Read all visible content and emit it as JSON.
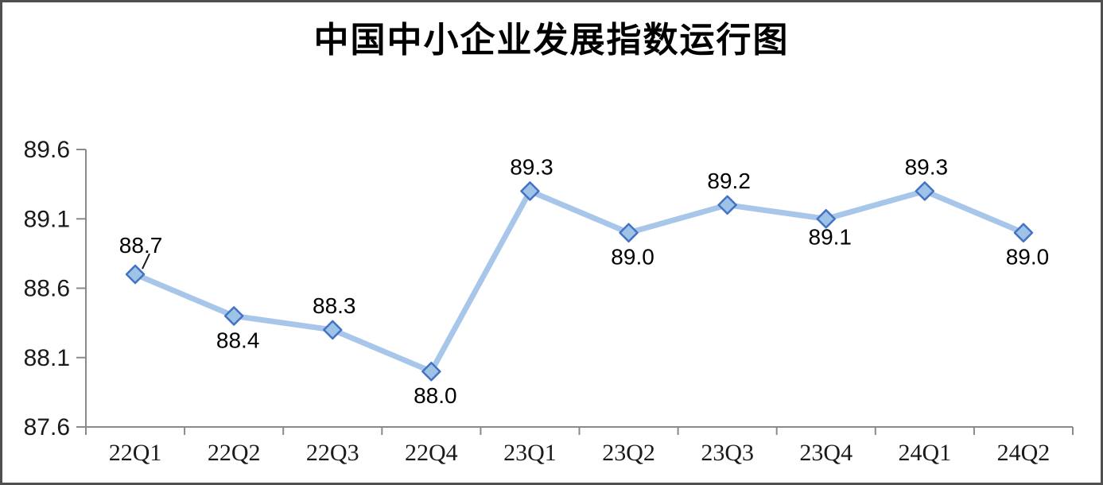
{
  "figure": {
    "background_color": "#ffffff",
    "frame_border_color": "#4f4f4f"
  },
  "chart_data": {
    "type": "line",
    "title": "中国中小企业发展指数运行图",
    "categories": [
      "22Q1",
      "22Q2",
      "22Q3",
      "22Q4",
      "23Q1",
      "23Q2",
      "23Q3",
      "23Q4",
      "24Q1",
      "24Q2"
    ],
    "values": [
      88.7,
      88.4,
      88.3,
      88.0,
      89.3,
      89.0,
      89.2,
      89.1,
      89.3,
      89.0
    ],
    "data_labels": [
      "88.7",
      "88.4",
      "88.3",
      "88.0",
      "89.3",
      "89.0",
      "89.2",
      "89.1",
      "89.3",
      "89.0"
    ],
    "label_side": [
      "above",
      "below",
      "above",
      "below",
      "above",
      "below",
      "above",
      "below",
      "above",
      "below"
    ],
    "first_point_has_leader_line": true,
    "xlabel": "",
    "ylabel": "",
    "ylim": [
      87.6,
      89.6
    ],
    "yticks": [
      "89.6",
      "89.1",
      "88.6",
      "88.1",
      "87.6"
    ],
    "grid": false,
    "legend": false,
    "marker_shape": "diamond",
    "colors": {
      "line": "#a7c6e9",
      "marker_fill": "#9dc3e6",
      "marker_border": "#4472c4",
      "axis": "#8a8a8a",
      "data_label_text": "#000000",
      "tick_label_text": "#1a1a1a",
      "title_text": "#000000",
      "leader_line": "#1a1a1a"
    }
  }
}
